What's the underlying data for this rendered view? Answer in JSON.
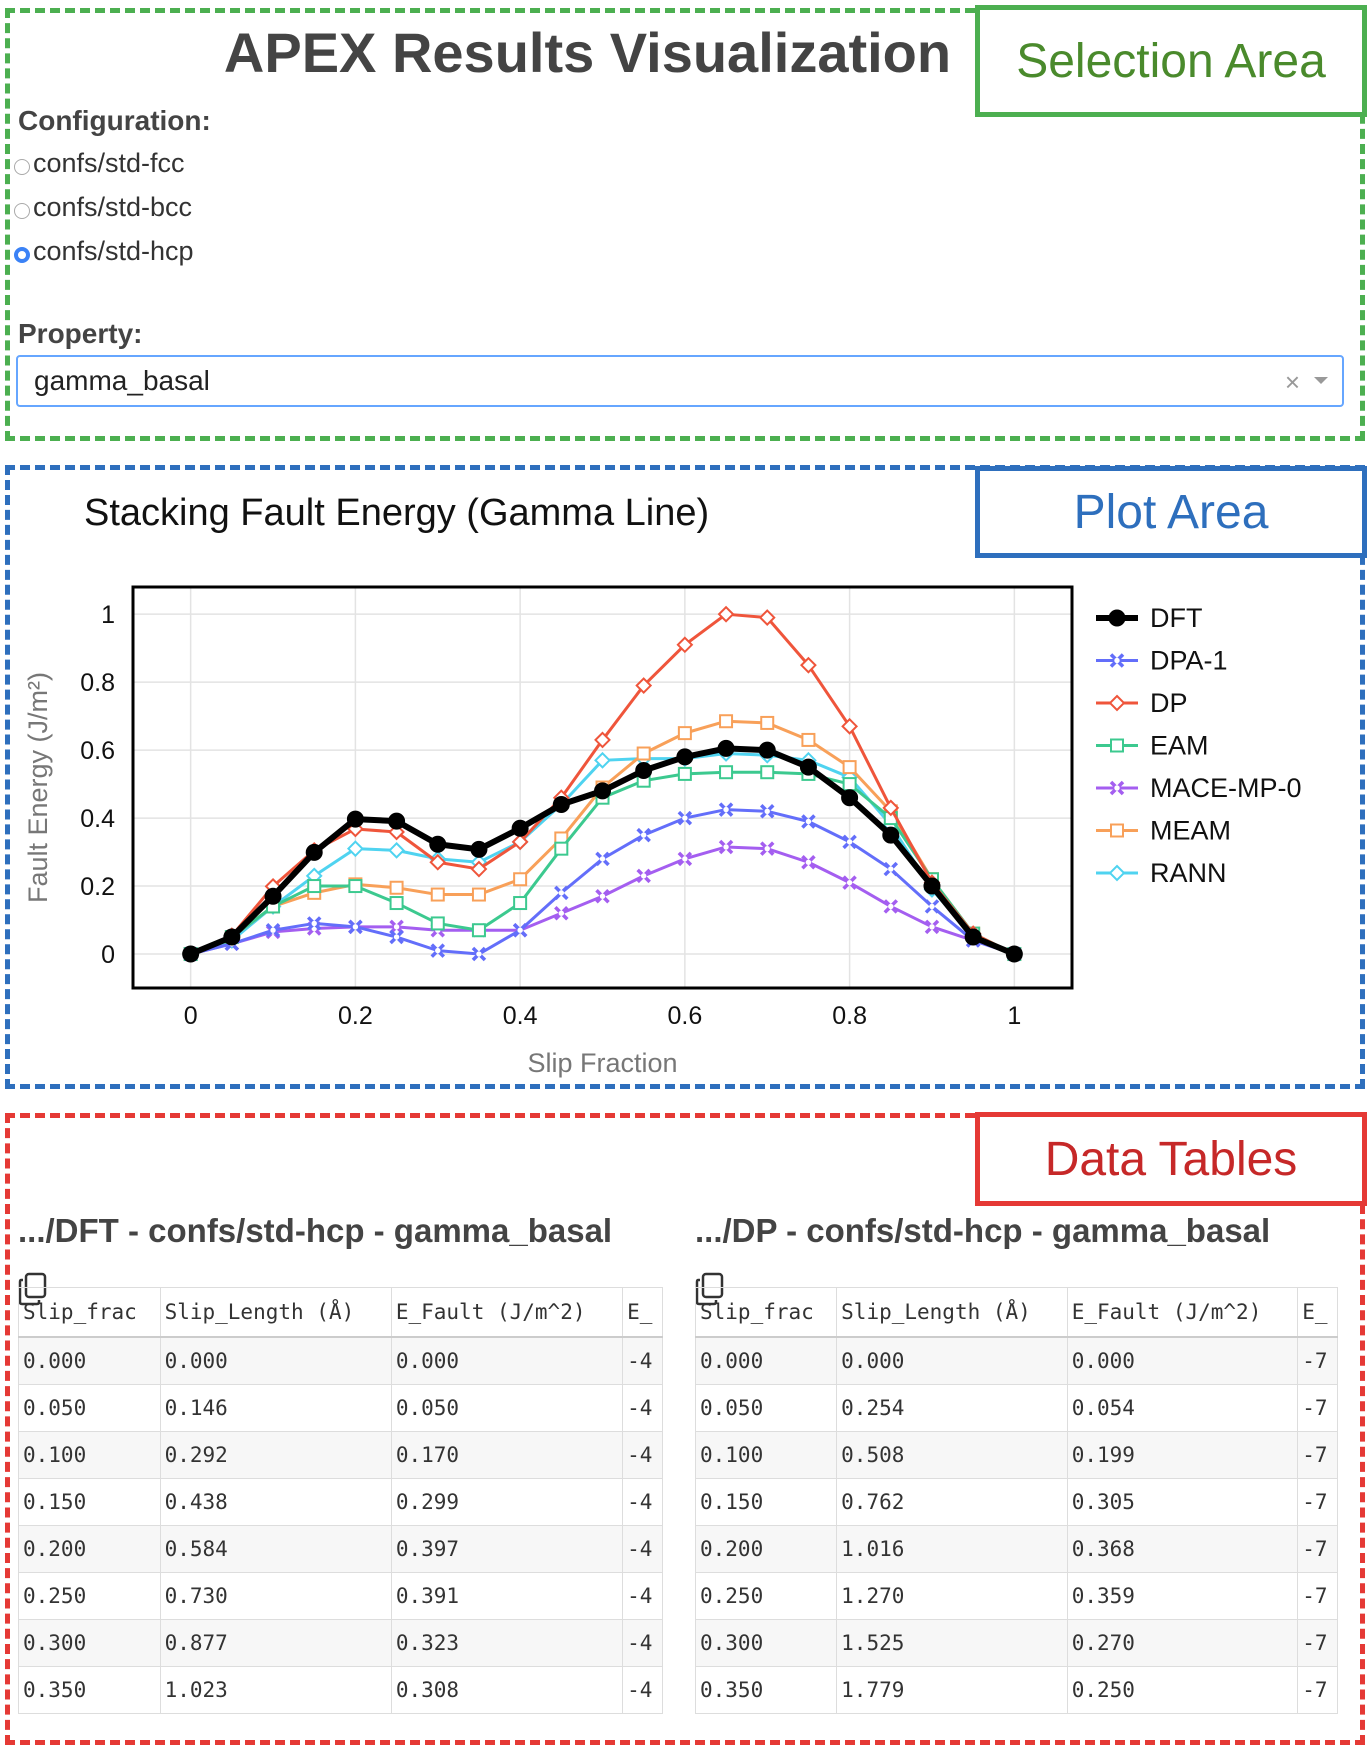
{
  "app": {
    "title": "APEX Results Visualization"
  },
  "labels": {
    "selection": "Selection Area",
    "plot": "Plot Area",
    "tables": "Data Tables"
  },
  "config": {
    "label": "Configuration:",
    "options": [
      "confs/std-fcc",
      "confs/std-bcc",
      "confs/std-hcp"
    ],
    "selected": "confs/std-hcp"
  },
  "property": {
    "label": "Property:",
    "value": "gamma_basal",
    "clear": "×"
  },
  "colors": {
    "DFT": "#000000",
    "DPA-1": "#636efa",
    "DP": "#ef553b",
    "EAM": "#3cc98f",
    "MACE-MP-0": "#a45ef0",
    "MEAM": "#f8a059",
    "RANN": "#4fd3f0"
  },
  "chart_data": {
    "type": "line",
    "title": "Stacking Fault Energy (Gamma Line)",
    "xlabel": "Slip Fraction",
    "ylabel": "Fault Energy (J/m²)",
    "xlim": [
      -0.07,
      1.07
    ],
    "ylim": [
      -0.1,
      1.08
    ],
    "xticks": [
      0,
      0.2,
      0.4,
      0.6,
      0.8,
      1
    ],
    "xtick_labels": [
      "0",
      "0.2",
      "0.4",
      "0.6",
      "0.8",
      "1"
    ],
    "yticks": [
      0,
      0.2,
      0.4,
      0.6,
      0.8,
      1
    ],
    "ytick_labels": [
      "0",
      "0.2",
      "0.4",
      "0.6",
      "0.8",
      "1"
    ],
    "legend_position": "right",
    "x": [
      0,
      0.05,
      0.1,
      0.15,
      0.2,
      0.25,
      0.3,
      0.35,
      0.4,
      0.45,
      0.5,
      0.55,
      0.6,
      0.65,
      0.7,
      0.75,
      0.8,
      0.85,
      0.9,
      0.95,
      1
    ],
    "series": [
      {
        "name": "DFT",
        "marker": "circle",
        "values": [
          0,
          0.05,
          0.17,
          0.299,
          0.397,
          0.391,
          0.323,
          0.308,
          0.37,
          0.44,
          0.48,
          0.54,
          0.58,
          0.605,
          0.6,
          0.55,
          0.46,
          0.35,
          0.2,
          0.05,
          0
        ]
      },
      {
        "name": "DPA-1",
        "marker": "x",
        "values": [
          0,
          0.03,
          0.07,
          0.09,
          0.08,
          0.05,
          0.01,
          0,
          0.07,
          0.18,
          0.28,
          0.35,
          0.4,
          0.425,
          0.42,
          0.39,
          0.33,
          0.25,
          0.14,
          0.04,
          0
        ]
      },
      {
        "name": "DP",
        "marker": "diamond",
        "values": [
          0,
          0.054,
          0.199,
          0.305,
          0.368,
          0.359,
          0.27,
          0.25,
          0.33,
          0.46,
          0.63,
          0.79,
          0.91,
          1.0,
          0.99,
          0.85,
          0.67,
          0.43,
          0.21,
          0.06,
          0
        ]
      },
      {
        "name": "EAM",
        "marker": "square",
        "values": [
          0,
          0.05,
          0.14,
          0.2,
          0.2,
          0.15,
          0.09,
          0.07,
          0.15,
          0.31,
          0.46,
          0.51,
          0.53,
          0.535,
          0.535,
          0.53,
          0.5,
          0.4,
          0.22,
          0.06,
          0
        ]
      },
      {
        "name": "MACE-MP-0",
        "marker": "x",
        "values": [
          0,
          0.03,
          0.065,
          0.075,
          0.08,
          0.08,
          0.07,
          0.07,
          0.07,
          0.12,
          0.17,
          0.23,
          0.28,
          0.315,
          0.31,
          0.27,
          0.21,
          0.14,
          0.08,
          0.04,
          0
        ]
      },
      {
        "name": "MEAM",
        "marker": "square",
        "values": [
          0,
          0.05,
          0.14,
          0.18,
          0.205,
          0.195,
          0.175,
          0.175,
          0.22,
          0.34,
          0.49,
          0.59,
          0.65,
          0.685,
          0.68,
          0.63,
          0.55,
          0.42,
          0.22,
          0.06,
          0
        ]
      },
      {
        "name": "RANN",
        "marker": "diamond",
        "values": [
          0,
          0.04,
          0.14,
          0.23,
          0.31,
          0.305,
          0.28,
          0.27,
          0.33,
          0.44,
          0.57,
          0.575,
          0.575,
          0.59,
          0.585,
          0.57,
          0.52,
          0.38,
          0.19,
          0.05,
          0
        ]
      }
    ]
  },
  "tables": [
    {
      "title": ".../DFT - confs/std-hcp - gamma_basal",
      "headers": [
        "Slip_frac",
        "Slip_Length (Å)",
        "E_Fault (J/m^2)",
        "E_"
      ],
      "rows": [
        [
          "0.000",
          "0.000",
          "0.000",
          "-4"
        ],
        [
          "0.050",
          "0.146",
          "0.050",
          "-4"
        ],
        [
          "0.100",
          "0.292",
          "0.170",
          "-4"
        ],
        [
          "0.150",
          "0.438",
          "0.299",
          "-4"
        ],
        [
          "0.200",
          "0.584",
          "0.397",
          "-4"
        ],
        [
          "0.250",
          "0.730",
          "0.391",
          "-4"
        ],
        [
          "0.300",
          "0.877",
          "0.323",
          "-4"
        ],
        [
          "0.350",
          "1.023",
          "0.308",
          "-4"
        ]
      ]
    },
    {
      "title": ".../DP - confs/std-hcp - gamma_basal",
      "headers": [
        "Slip_frac",
        "Slip_Length (Å)",
        "E_Fault (J/m^2)",
        "E_"
      ],
      "rows": [
        [
          "0.000",
          "0.000",
          "0.000",
          "-7"
        ],
        [
          "0.050",
          "0.254",
          "0.054",
          "-7"
        ],
        [
          "0.100",
          "0.508",
          "0.199",
          "-7"
        ],
        [
          "0.150",
          "0.762",
          "0.305",
          "-7"
        ],
        [
          "0.200",
          "1.016",
          "0.368",
          "-7"
        ],
        [
          "0.250",
          "1.270",
          "0.359",
          "-7"
        ],
        [
          "0.300",
          "1.525",
          "0.270",
          "-7"
        ],
        [
          "0.350",
          "1.779",
          "0.250",
          "-7"
        ]
      ]
    }
  ]
}
